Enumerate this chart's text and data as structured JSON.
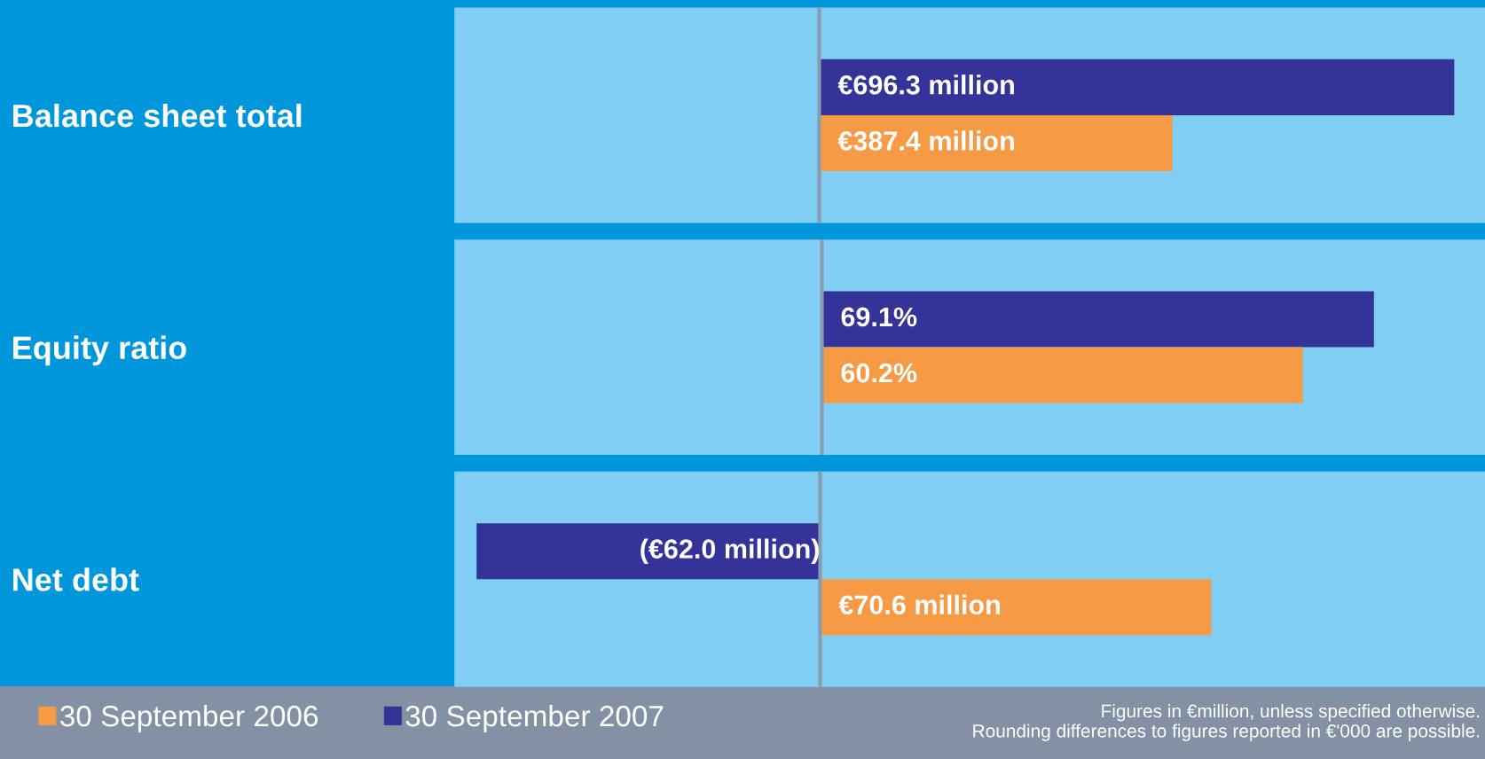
{
  "chart_data": [
    {
      "type": "bar",
      "orientation": "horizontal",
      "categories": [
        "Balance sheet total"
      ],
      "xlim": [
        -400,
        730
      ],
      "tick_labels": "y",
      "series": [
        {
          "color": "#343399",
          "values": [
            696.3
          ],
          "value_labels": [
            "€696.3 million"
          ]
        },
        {
          "color": "#f79a46",
          "values": [
            387.4
          ],
          "value_labels": [
            "€387.4 million"
          ]
        }
      ]
    },
    {
      "type": "bar",
      "orientation": "horizontal",
      "categories": [
        "Equity ratio"
      ],
      "xlim": [
        -46,
        83
      ],
      "tick_labels": "y",
      "series": [
        {
          "color": "#343399",
          "values": [
            69.1
          ],
          "value_labels": [
            "69.1%"
          ]
        },
        {
          "color": "#f79a46",
          "values": [
            60.2
          ],
          "value_labels": [
            "60.2%"
          ]
        }
      ]
    },
    {
      "type": "bar",
      "orientation": "horizontal",
      "categories": [
        "Net debt"
      ],
      "xlim": [
        -66,
        120
      ],
      "tick_labels": "y",
      "series": [
        {
          "name": "30 September 2007",
          "color": "#343399",
          "values": [
            -62.0
          ],
          "value_labels": [
            "(€62.0 million)"
          ]
        },
        {
          "name": "30 September 2006",
          "color": "#f79a46",
          "values": [
            70.6
          ],
          "value_labels": [
            "€70.6 million"
          ]
        }
      ],
      "legend": "bottom",
      "annotations": [
        "Figures in €million, unless specified otherwise.",
        "Rounding differences to figures reported in €'000 are possible."
      ]
    }
  ]
}
